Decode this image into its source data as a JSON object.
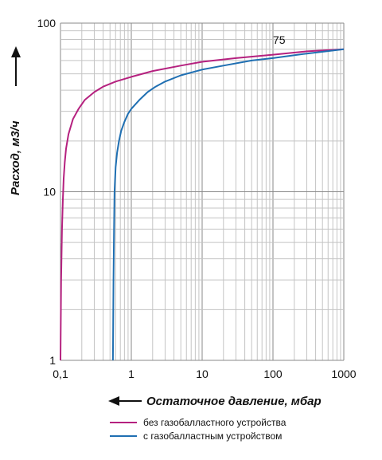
{
  "chart_data": {
    "type": "line",
    "x_scale": "log",
    "y_scale": "log",
    "xlim": [
      0.1,
      1000
    ],
    "ylim": [
      1,
      100
    ],
    "x_tick_labels": [
      {
        "value": 0.1,
        "label": "0,1"
      },
      {
        "value": 1,
        "label": "1"
      },
      {
        "value": 10,
        "label": "10"
      },
      {
        "value": 100,
        "label": "100"
      },
      {
        "value": 1000,
        "label": "1000"
      }
    ],
    "y_tick_labels": [
      {
        "value": 1,
        "label": "1"
      },
      {
        "value": 10,
        "label": "10"
      },
      {
        "value": 100,
        "label": "100"
      }
    ],
    "xlabel": "Остаточное давление, мбар",
    "ylabel": "Расход, м3/ч",
    "grid": true,
    "annotation": {
      "text": "75",
      "x": 100,
      "y": 72
    },
    "series": [
      {
        "name": "без газобалластного устройства",
        "color": "#b5217f",
        "x": [
          0.1,
          0.102,
          0.105,
          0.108,
          0.111,
          0.115,
          0.12,
          0.13,
          0.15,
          0.18,
          0.22,
          0.3,
          0.4,
          0.6,
          1,
          2,
          5,
          10,
          30,
          100,
          300,
          1000
        ],
        "y": [
          1,
          3,
          6,
          9,
          12,
          15,
          18,
          22,
          27,
          31,
          35,
          39,
          42,
          45,
          48,
          52,
          56,
          59,
          62,
          65,
          68,
          70
        ]
      },
      {
        "name": "с газобалластным устройством",
        "color": "#1f6fb2",
        "x": [
          0.55,
          0.56,
          0.57,
          0.58,
          0.6,
          0.63,
          0.67,
          0.72,
          0.8,
          0.9,
          1,
          1.3,
          1.7,
          2.2,
          3,
          5,
          10,
          20,
          50,
          100,
          300,
          1000
        ],
        "y": [
          1,
          3,
          6,
          10,
          14,
          17,
          20,
          23,
          26,
          29,
          31,
          35,
          39,
          42,
          45,
          49,
          53,
          56,
          60,
          62,
          66,
          70
        ]
      }
    ]
  }
}
